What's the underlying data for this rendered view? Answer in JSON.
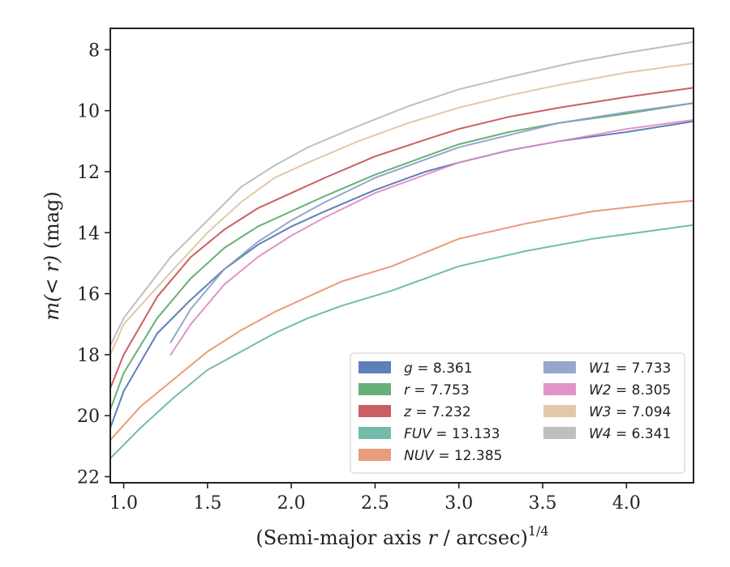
{
  "chart_data": {
    "type": "line",
    "xlabel": "(Semi-major axis r / arcsec)^1/4",
    "xlabel_parts": {
      "pre": "(Semi-major axis ",
      "var": "r",
      "post": " / arcsec)",
      "sup": "1/4"
    },
    "ylabel": "m(< r) (mag)",
    "ylabel_parts": {
      "pre": "m(< r)",
      "post": " (mag)"
    },
    "xlim": [
      0.92,
      4.4
    ],
    "ylim": [
      22.2,
      7.3
    ],
    "y_inverted": true,
    "xticks": [
      1.0,
      1.5,
      2.0,
      2.5,
      3.0,
      3.5,
      4.0
    ],
    "xtick_labels": [
      "1.0",
      "1.5",
      "2.0",
      "2.5",
      "3.0",
      "3.5",
      "4.0"
    ],
    "yticks": [
      8,
      10,
      12,
      14,
      16,
      18,
      20,
      22
    ],
    "ytick_labels": [
      "8",
      "10",
      "12",
      "14",
      "16",
      "18",
      "20",
      "22"
    ],
    "grid": false,
    "legend_position": "lower-right",
    "legend_columns": 2,
    "series": [
      {
        "name": "g = 8.361",
        "band": "g",
        "value": "8.361",
        "color": "#4c72b0",
        "x": [
          0.92,
          1.0,
          1.2,
          1.4,
          1.6,
          1.8,
          2.0,
          2.2,
          2.5,
          2.8,
          3.0,
          3.3,
          3.6,
          4.0,
          4.4
        ],
        "y": [
          20.4,
          19.2,
          17.3,
          16.2,
          15.2,
          14.4,
          13.8,
          13.3,
          12.6,
          12.0,
          11.7,
          11.3,
          11.0,
          10.7,
          10.35
        ]
      },
      {
        "name": "r = 7.753",
        "band": "r",
        "value": "7.753",
        "color": "#55a868",
        "x": [
          0.92,
          1.0,
          1.2,
          1.4,
          1.6,
          1.8,
          2.0,
          2.2,
          2.5,
          2.8,
          3.0,
          3.3,
          3.6,
          4.0,
          4.4
        ],
        "y": [
          19.8,
          18.6,
          16.8,
          15.5,
          14.5,
          13.8,
          13.3,
          12.8,
          12.1,
          11.5,
          11.1,
          10.7,
          10.4,
          10.1,
          9.75
        ]
      },
      {
        "name": "z = 7.232",
        "band": "z",
        "value": "7.232",
        "color": "#c44e52",
        "x": [
          0.92,
          1.0,
          1.2,
          1.4,
          1.6,
          1.8,
          2.0,
          2.2,
          2.5,
          2.8,
          3.0,
          3.3,
          3.6,
          4.0,
          4.4
        ],
        "y": [
          19.1,
          18.0,
          16.1,
          14.8,
          13.9,
          13.2,
          12.7,
          12.2,
          11.5,
          10.95,
          10.6,
          10.2,
          9.9,
          9.55,
          9.25
        ]
      },
      {
        "name": "FUV = 13.133",
        "band": "FUV",
        "value": "13.133",
        "color": "#64b5a0",
        "x": [
          0.92,
          1.1,
          1.3,
          1.5,
          1.7,
          1.9,
          2.1,
          2.3,
          2.6,
          3.0,
          3.4,
          3.8,
          4.2,
          4.4
        ],
        "y": [
          21.4,
          20.4,
          19.4,
          18.5,
          17.9,
          17.3,
          16.8,
          16.4,
          15.9,
          15.1,
          14.6,
          14.2,
          13.9,
          13.75
        ]
      },
      {
        "name": "NUV = 12.385",
        "band": "NUV",
        "value": "12.385",
        "color": "#e8916c",
        "x": [
          0.92,
          1.1,
          1.3,
          1.5,
          1.7,
          1.9,
          2.1,
          2.3,
          2.6,
          3.0,
          3.4,
          3.8,
          4.2,
          4.4
        ],
        "y": [
          20.8,
          19.7,
          18.8,
          17.9,
          17.2,
          16.6,
          16.1,
          15.6,
          15.1,
          14.2,
          13.7,
          13.3,
          13.05,
          12.95
        ]
      },
      {
        "name": "W1 = 7.733",
        "band": "W1",
        "value": "7.733",
        "color": "#8c9cc6",
        "x": [
          1.28,
          1.4,
          1.6,
          1.8,
          2.0,
          2.2,
          2.5,
          2.8,
          3.0,
          3.3,
          3.6,
          4.0,
          4.4
        ],
        "y": [
          17.6,
          16.5,
          15.2,
          14.3,
          13.6,
          13.0,
          12.2,
          11.6,
          11.2,
          10.8,
          10.4,
          10.05,
          9.75
        ]
      },
      {
        "name": "W2 = 8.305",
        "band": "W2",
        "value": "8.305",
        "color": "#dd8ac0",
        "x": [
          1.28,
          1.4,
          1.6,
          1.8,
          2.0,
          2.2,
          2.5,
          2.8,
          3.0,
          3.3,
          3.6,
          4.0,
          4.4
        ],
        "y": [
          18.0,
          17.0,
          15.7,
          14.8,
          14.1,
          13.5,
          12.7,
          12.1,
          11.7,
          11.3,
          11.0,
          10.6,
          10.3
        ]
      },
      {
        "name": "W3 = 7.094",
        "band": "W3",
        "value": "7.094",
        "color": "#dfc29e",
        "x": [
          0.92,
          1.0,
          1.28,
          1.5,
          1.7,
          1.9,
          2.1,
          2.4,
          2.7,
          3.0,
          3.3,
          3.6,
          4.0,
          4.4
        ],
        "y": [
          18.0,
          17.0,
          15.3,
          14.0,
          13.0,
          12.2,
          11.7,
          11.0,
          10.4,
          9.9,
          9.5,
          9.15,
          8.75,
          8.45
        ]
      },
      {
        "name": "W4 = 6.341",
        "band": "W4",
        "value": "6.341",
        "color": "#b8b8b8",
        "x": [
          0.92,
          1.0,
          1.28,
          1.5,
          1.7,
          1.9,
          2.1,
          2.4,
          2.7,
          3.0,
          3.3,
          3.7,
          4.0,
          4.4
        ],
        "y": [
          17.7,
          16.8,
          14.8,
          13.6,
          12.5,
          11.8,
          11.2,
          10.5,
          9.85,
          9.3,
          8.9,
          8.4,
          8.1,
          7.75
        ]
      }
    ]
  }
}
